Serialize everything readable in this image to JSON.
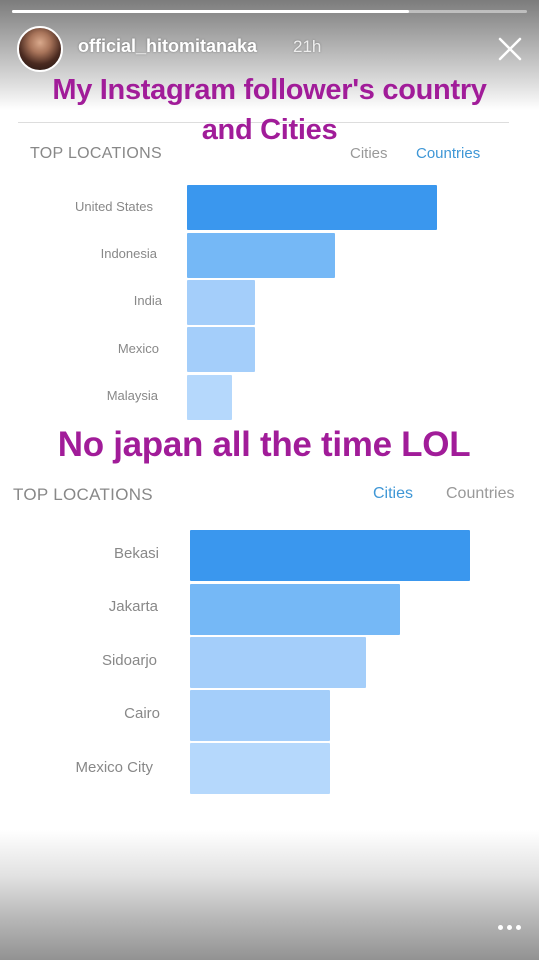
{
  "story": {
    "username": "official_hitomitanaka",
    "time": "21h",
    "progress": 0.77
  },
  "captions": {
    "line1": "My Instagram follower's country",
    "line2": "and Cities",
    "line3": "No japan all the time LOL"
  },
  "panels": [
    {
      "title": "TOP LOCATIONS",
      "tabs": [
        "Cities",
        "Countries"
      ],
      "active_tab": "Countries",
      "rows": [
        {
          "label": "United States",
          "value": 100
        },
        {
          "label": "Indonesia",
          "value": 59
        },
        {
          "label": "India",
          "value": 27
        },
        {
          "label": "Mexico",
          "value": 27
        },
        {
          "label": "Malaysia",
          "value": 18
        }
      ]
    },
    {
      "title": "TOP LOCATIONS",
      "tabs": [
        "Cities",
        "Countries"
      ],
      "active_tab": "Cities",
      "rows": [
        {
          "label": "Bekasi",
          "value": 100
        },
        {
          "label": "Jakarta",
          "value": 75
        },
        {
          "label": "Sidoarjo",
          "value": 63
        },
        {
          "label": "Cairo",
          "value": 50
        },
        {
          "label": "Mexico City",
          "value": 50
        }
      ]
    }
  ],
  "colors": {
    "bar_shades": [
      "#3a97ee",
      "#75b8f6",
      "#a4cefa",
      "#a4cefa",
      "#b5d8fc"
    ],
    "caption": "#a11c99",
    "active_tab": "#3f97d6"
  },
  "icons": {
    "close": "close-icon",
    "more": "more-icon"
  }
}
